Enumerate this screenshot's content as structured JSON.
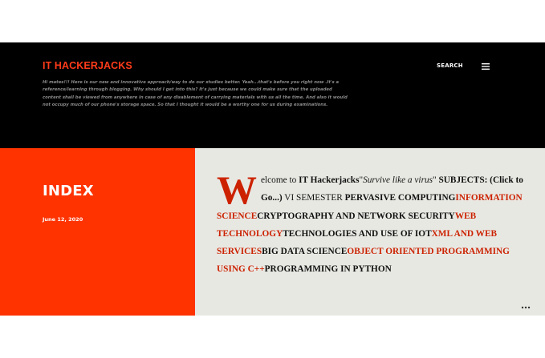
{
  "header": {
    "blog_title": "IT HACKERJACKS",
    "description": "Hi mates!!! Here is our new and innovative approach/way to do our studies better. Yeah...that's before you right now .It's a reference/learning through blogging. Why should I get into this? It's just because we could make sure that the uploaded content shall be viewed from anywhere in case of any disablement of carrying materials with us all the time. And also it would not occupy much of our phone's storage space. So that I thought it would be a worthy one for us during examinations.",
    "search_label": "SEARCH",
    "menu_icon": "hamburger-menu-icon"
  },
  "post": {
    "title": "INDEX",
    "date": "June 12, 2020",
    "snippet": {
      "dropcap": "W",
      "intro": "elcome to ",
      "brand": "IT Hackerjacks",
      "quote_open": "\"",
      "motto": "Survive like a virus",
      "quote_close": "\"",
      "subjects_label": " SUBJECTS:   (Click to Go...)",
      "semester": " VI SEMESTER ",
      "subject_1": "PERVASIVE COMPUTING",
      "subject_2": "INFORMATION SCIENCE",
      "subject_3": "CRYPTOGRAPHY AND NETWORK SECURITY",
      "subject_4": "WEB TECHNOLOGY",
      "subject_5": "TECHNOLOGIES AND USE OF IOT",
      "subject_6": "XML AND WEB SERVICES",
      "subject_7": "BIG DATA SCIENCE",
      "subject_8": "OBJECT ORIENTED PROGRAMMING USING C++",
      "subject_9": "PROGRAMMING IN PYTHON"
    },
    "more_icon": "more-options-icon"
  },
  "colors": {
    "header_bg": "#000000",
    "accent": "#ff3300",
    "title_red": "#ff3b1a",
    "link_red": "#cc2200",
    "post_bg": "#e8e8e3"
  }
}
